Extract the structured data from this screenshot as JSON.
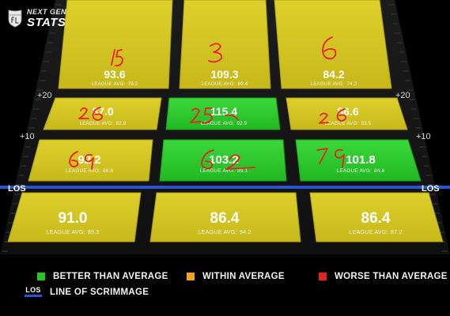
{
  "branding": {
    "line1": "NEXT GEN",
    "line2": "STATS"
  },
  "field": {
    "yard_labels": {
      "plus20": "+20",
      "plus10": "+10",
      "los": "LOS"
    },
    "avg_prefix": "LEAGUE AVG:",
    "zones": {
      "deep_left": {
        "value": "93.6",
        "avg": "79.2",
        "rating": "within"
      },
      "deep_middle": {
        "value": "109.3",
        "avg": "89.4",
        "rating": "within"
      },
      "deep_right": {
        "value": "84.2",
        "avg": "74.2",
        "rating": "within"
      },
      "intermediate_left": {
        "value": "87.0",
        "avg": "82.9",
        "rating": "within"
      },
      "intermediate_middle": {
        "value": "115.4",
        "avg": "92.9",
        "rating": "better"
      },
      "intermediate_right": {
        "value": "86.6",
        "avg": "83.5",
        "rating": "within"
      },
      "short_left": {
        "value": "92.2",
        "avg": "86.8",
        "rating": "within"
      },
      "short_middle": {
        "value": "103.2",
        "avg": "89.1",
        "rating": "better"
      },
      "short_right": {
        "value": "101.8",
        "avg": "84.8",
        "rating": "better"
      },
      "behind_left": {
        "value": "91.0",
        "avg": "89.3",
        "rating": "within"
      },
      "behind_middle": {
        "value": "86.4",
        "avg": "94.2",
        "rating": "within"
      },
      "behind_right": {
        "value": "86.4",
        "avg": "87.2",
        "rating": "within"
      }
    }
  },
  "annotations": {
    "deep_left": "15",
    "deep_middle": "3",
    "deep_right": "6",
    "intermediate_left": "26",
    "intermediate_middle": "25",
    "intermediate_right": "26",
    "short_left": "69",
    "short_middle": "62",
    "short_right": "79"
  },
  "legend": {
    "better": "BETTER THAN AVERAGE",
    "within": "WITHIN AVERAGE",
    "worse": "WORSE THAN AVERAGE",
    "los_badge": "LOS",
    "los": "LINE OF SCRIMMAGE"
  },
  "colors": {
    "better": "#2ed02e",
    "within": "#d8c820",
    "worse": "#e8211e",
    "los_line": "#2a53d8",
    "swatch_better": "#22c81e",
    "swatch_within": "#f0a41e",
    "swatch_worse": "#e8211e"
  }
}
